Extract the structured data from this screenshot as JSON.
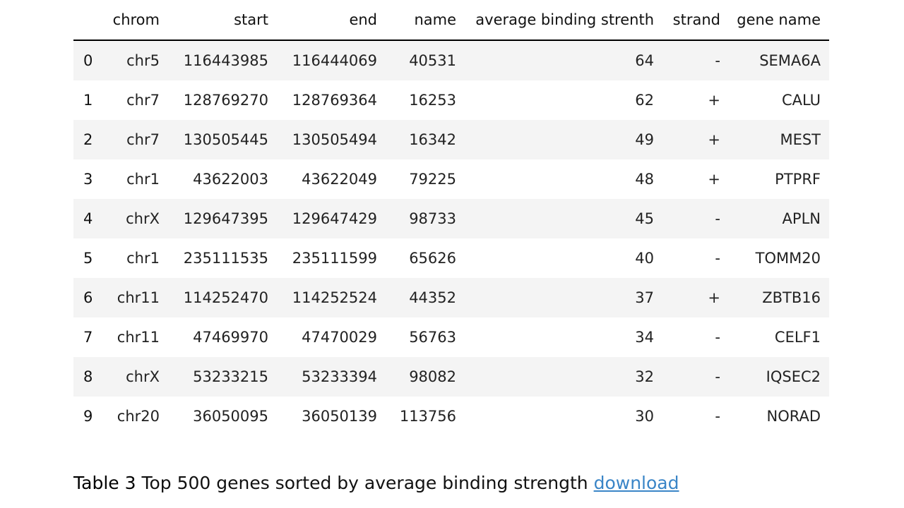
{
  "table": {
    "columns": [
      "",
      "chrom",
      "start",
      "end",
      "name",
      "average binding strenth",
      "strand",
      "gene name"
    ],
    "rows": [
      [
        "0",
        "chr5",
        "116443985",
        "116444069",
        "40531",
        "64",
        "-",
        "SEMA6A"
      ],
      [
        "1",
        "chr7",
        "128769270",
        "128769364",
        "16253",
        "62",
        "+",
        "CALU"
      ],
      [
        "2",
        "chr7",
        "130505445",
        "130505494",
        "16342",
        "49",
        "+",
        "MEST"
      ],
      [
        "3",
        "chr1",
        "43622003",
        "43622049",
        "79225",
        "48",
        "+",
        "PTPRF"
      ],
      [
        "4",
        "chrX",
        "129647395",
        "129647429",
        "98733",
        "45",
        "-",
        "APLN"
      ],
      [
        "5",
        "chr1",
        "235111535",
        "235111599",
        "65626",
        "40",
        "-",
        "TOMM20"
      ],
      [
        "6",
        "chr11",
        "114252470",
        "114252524",
        "44352",
        "37",
        "+",
        "ZBTB16"
      ],
      [
        "7",
        "chr11",
        "47469970",
        "47470029",
        "56763",
        "34",
        "-",
        "CELF1"
      ],
      [
        "8",
        "chrX",
        "53233215",
        "53233394",
        "98082",
        "32",
        "-",
        "IQSEC2"
      ],
      [
        "9",
        "chr20",
        "36050095",
        "36050139",
        "113756",
        "30",
        "-",
        "NORAD"
      ]
    ]
  },
  "caption": {
    "label": "Table 3",
    "text": " Top 500 genes sorted by average binding strength ",
    "link": "download"
  }
}
